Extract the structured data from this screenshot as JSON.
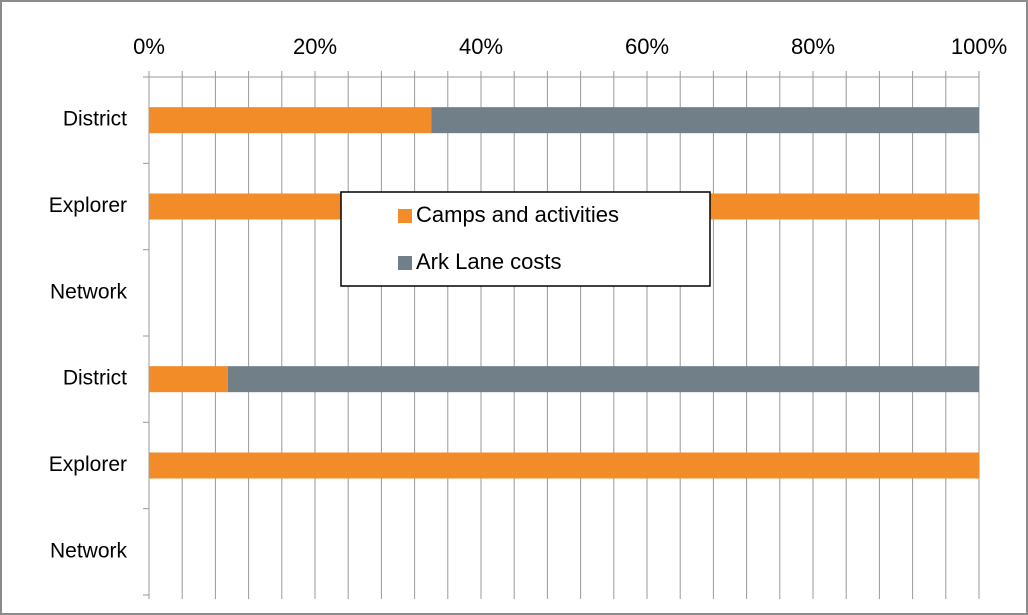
{
  "chart_data": {
    "type": "bar",
    "orientation": "horizontal",
    "stacking": "percent",
    "title": "",
    "xlabel": "",
    "ylabel": "",
    "categories": [
      "District",
      "Explorer",
      "Network",
      "District",
      "Explorer",
      "Network"
    ],
    "xlim": [
      0,
      100
    ],
    "x_ticks": [
      "0%",
      "20%",
      "40%",
      "60%",
      "80%",
      "100%"
    ],
    "x_minor_step": 4,
    "x_axis_position": "top",
    "grid": true,
    "series": [
      {
        "name": "Camps and activities",
        "color": "#F28C28",
        "values": [
          34,
          100,
          null,
          9.5,
          100,
          null
        ]
      },
      {
        "name": "Ark Lane costs",
        "color": "#707F88",
        "values": [
          66,
          0,
          null,
          90.5,
          0,
          null
        ]
      }
    ],
    "legend": {
      "position": "center-overlay"
    }
  }
}
